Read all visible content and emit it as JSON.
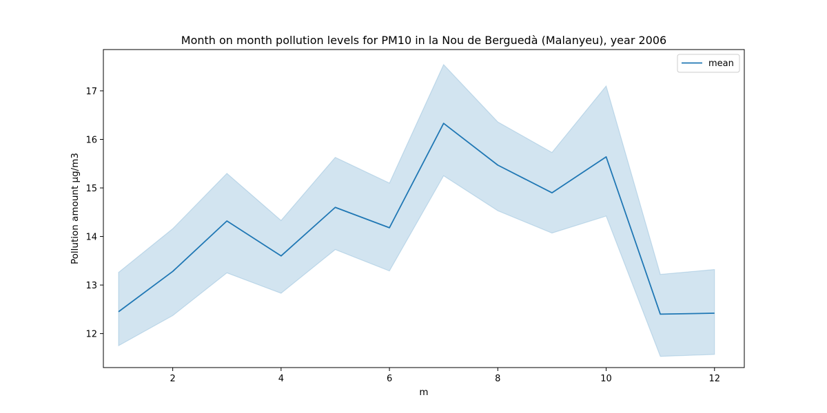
{
  "chart_data": {
    "type": "line",
    "title": "Month on month pollution levels for PM10 in la Nou de Berguedà (Malanyeu), year 2006",
    "xlabel": "m",
    "ylabel": "Pollution amount µg/m3",
    "xlim": [
      0.72,
      12.55
    ],
    "ylim": [
      11.3,
      17.85
    ],
    "xticks": [
      2,
      4,
      6,
      8,
      10,
      12
    ],
    "yticks": [
      12,
      13,
      14,
      15,
      16,
      17
    ],
    "grid": false,
    "legend_position": "top-right",
    "line_color": "#1f77b4",
    "band_color": "#1f77b4",
    "series": [
      {
        "name": "mean",
        "x": [
          1,
          2,
          3,
          4,
          5,
          6,
          7,
          8,
          9,
          10,
          11,
          12
        ],
        "y": [
          12.45,
          13.28,
          14.32,
          13.6,
          14.6,
          14.18,
          16.33,
          15.47,
          14.9,
          15.64,
          12.4,
          12.42
        ],
        "lower": [
          11.75,
          12.37,
          13.25,
          12.83,
          13.73,
          13.29,
          15.25,
          14.53,
          14.07,
          14.42,
          11.53,
          11.57
        ],
        "upper": [
          13.26,
          14.16,
          15.3,
          14.33,
          15.63,
          15.1,
          17.54,
          16.36,
          15.73,
          17.1,
          13.22,
          13.32
        ]
      }
    ]
  }
}
